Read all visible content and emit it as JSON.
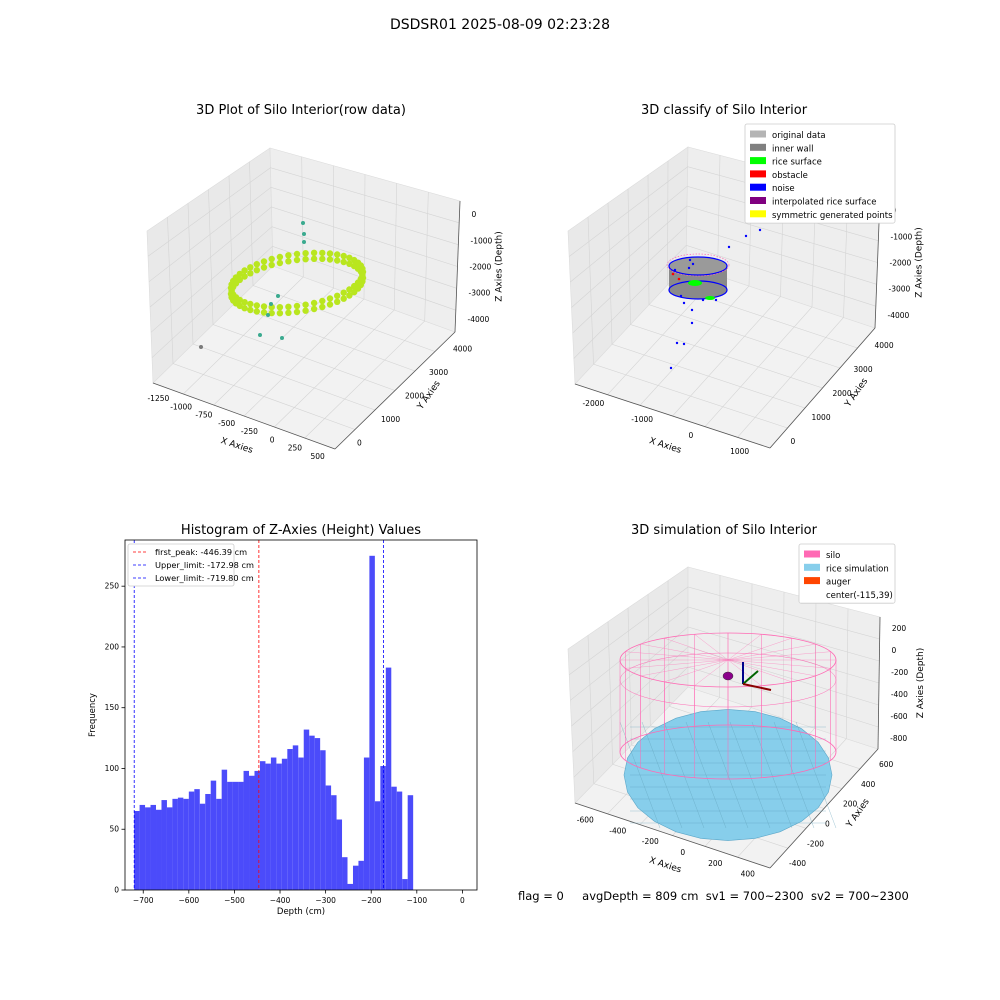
{
  "suptitle": "DSDSR01 2025-08-09 02:23:28",
  "status_line": {
    "flag": "flag = 0",
    "avg_depth": "avgDepth = 809 cm",
    "sv1": "sv1 = 700~2300",
    "sv2": "sv2 = 700~2300"
  },
  "chart_data": [
    {
      "type": "scatter3d",
      "title": "3D Plot of Silo Interior(row data)",
      "xlabel": "X Axies",
      "ylabel": "Y Axies",
      "zlabel": "Z Axies (Depth)",
      "xticks": [
        "-1250",
        "-1000",
        "-750",
        "-500",
        "-250",
        "0",
        "250",
        "500"
      ],
      "yticks": [
        "0",
        "1000",
        "2000",
        "3000",
        "4000"
      ],
      "zticks": [
        "0",
        "-1000",
        "-2000",
        "-3000",
        "-4000"
      ],
      "description_colors": {
        "main": "#b9e61f",
        "outlier": "#3aaa8f",
        "far": "#7a7a7a"
      }
    },
    {
      "type": "scatter3d",
      "title": "3D classify of Silo Interior",
      "xlabel": "X Axies",
      "ylabel": "Y Axies",
      "zlabel": "Z Axies (Depth)",
      "xticks": [
        "-2000",
        "-1000",
        "0",
        "1000"
      ],
      "yticks": [
        "0",
        "1000",
        "2000",
        "3000",
        "4000"
      ],
      "zticks": [
        "0",
        "-1000",
        "-2000",
        "-3000",
        "-4000"
      ],
      "legend": [
        {
          "name": "original data",
          "color": "#b4b4b4"
        },
        {
          "name": "inner wall",
          "color": "#808080"
        },
        {
          "name": "rice surface",
          "color": "#00ff00"
        },
        {
          "name": "obstacle",
          "color": "#ff0000"
        },
        {
          "name": "noise",
          "color": "#0000ff"
        },
        {
          "name": "interpolated rice surface",
          "color": "#800080"
        },
        {
          "name": "symmetric generated points",
          "color": "#ffff00"
        }
      ],
      "legend_placement": "top-right"
    },
    {
      "type": "bar",
      "title": "Histogram of Z-Axies (Height) Values",
      "xlabel": "Depth (cm)",
      "ylabel": "Frequency",
      "xlim": [
        -740,
        32
      ],
      "ylim": [
        0,
        288
      ],
      "xticks": [
        -700,
        -600,
        -500,
        -400,
        -300,
        -200,
        -100,
        0
      ],
      "yticks": [
        0,
        50,
        100,
        150,
        200,
        250
      ],
      "bin_start": -720,
      "bin_width": 12,
      "values": [
        65,
        70,
        68,
        70,
        66,
        74,
        68,
        75,
        76,
        75,
        81,
        83,
        71,
        79,
        90,
        75,
        99,
        89,
        89,
        89,
        98,
        94,
        98,
        106,
        104,
        109,
        104,
        108,
        116,
        119,
        109,
        132,
        127,
        125,
        115,
        86,
        78,
        58,
        27,
        5,
        20,
        24,
        109,
        275,
        73,
        102,
        183,
        85,
        81,
        9,
        78
      ],
      "bar_color": "#4b4bfa",
      "lines": [
        {
          "label": "first_peak: -446.39 cm",
          "x": -446.39,
          "color": "#ff0000"
        },
        {
          "label": "Upper_limit: -172.98 cm",
          "x": -172.98,
          "color": "#0000ff"
        },
        {
          "label": "Lower_limit: -719.80 cm",
          "x": -719.8,
          "color": "#0000ff"
        }
      ],
      "legend_placement": "top-left"
    },
    {
      "type": "surface3d",
      "title": "3D simulation of Silo Interior",
      "xlabel": "X Axies",
      "ylabel": "Y Axies",
      "zlabel": "Z Axies (Depth)",
      "xticks": [
        "-600",
        "-400",
        "-200",
        "0",
        "200",
        "400"
      ],
      "yticks": [
        "-400",
        "-200",
        "0",
        "200",
        "400",
        "600"
      ],
      "zticks": [
        "200",
        "0",
        "-200",
        "-400",
        "-600",
        "-800"
      ],
      "legend": [
        {
          "name": "silo",
          "color": "#ff69b4"
        },
        {
          "name": "rice simulation",
          "color": "#87ceeb"
        },
        {
          "name": "auger",
          "color": "#ff4500"
        },
        {
          "name": "center(-115,39)",
          "color": ""
        }
      ],
      "legend_placement": "top-right"
    }
  ]
}
